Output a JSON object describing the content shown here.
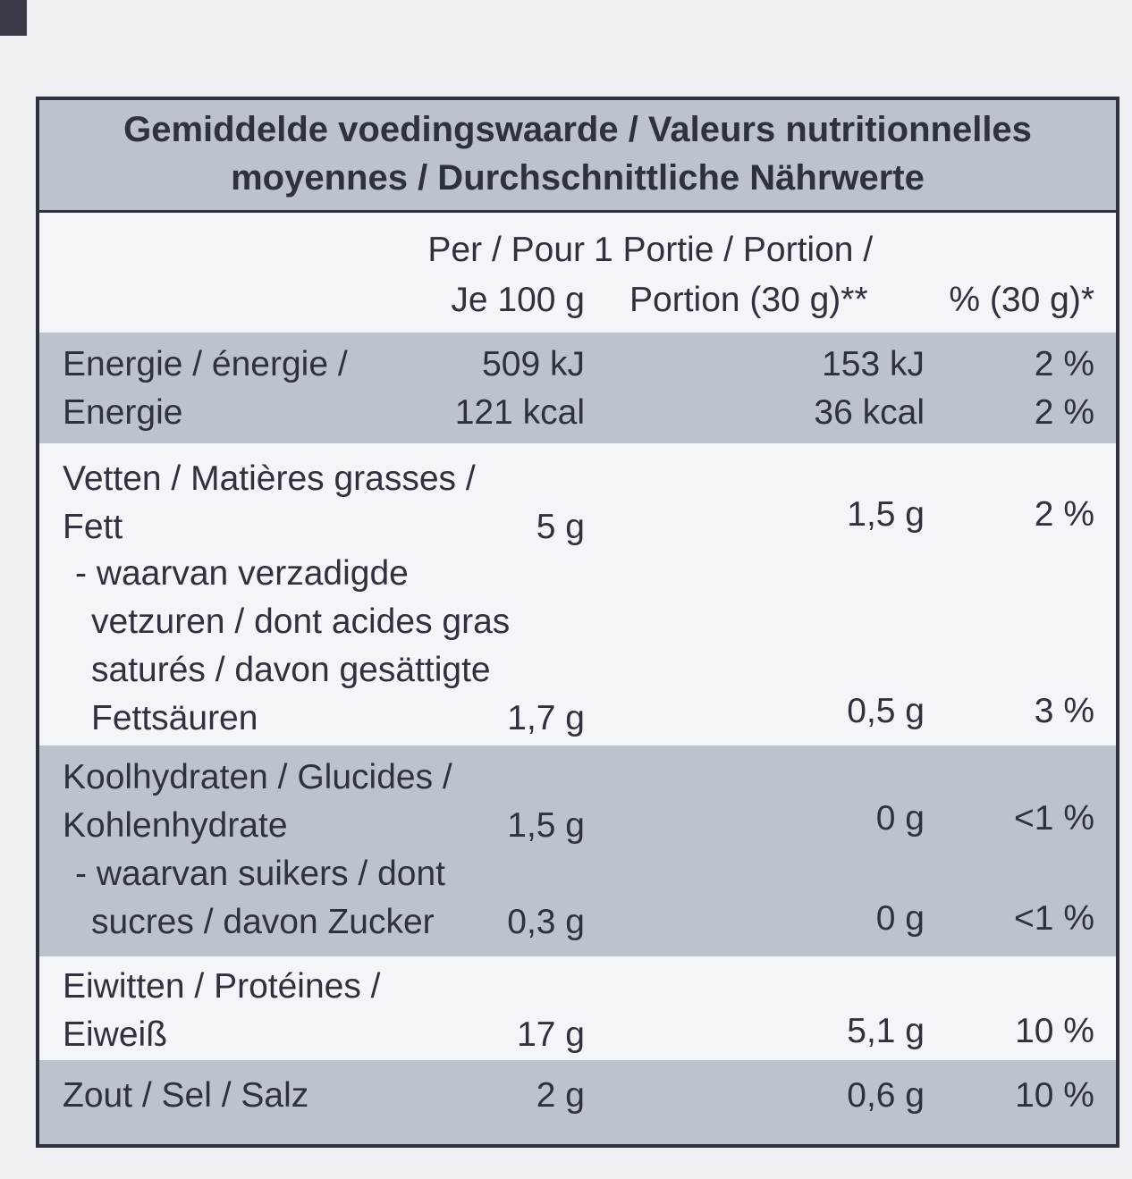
{
  "header": {
    "line1": "Gemiddelde voedingswaarde / Valeurs nutritionnelles",
    "line2": "moyennes / Durchschnittliche Nährwerte"
  },
  "columns": {
    "per100_line1": "Per / Pour",
    "per100_line2": "Je 100 g",
    "portion_line1": "1 Portie / Portion /",
    "portion_line2": "Portion (30 g)**",
    "pct": "% (30 g)*"
  },
  "rows": {
    "energy": {
      "name_line1": "Energie / énergie /",
      "name_line2": "Energie",
      "per100_kj": "509 kJ",
      "per100_kcal": "121 kcal",
      "portion_kj": "153 kJ",
      "portion_kcal": "36 kcal",
      "pct_kj": "2 %",
      "pct_kcal": "2 %"
    },
    "fat": {
      "name_line1": "Vetten / Matières grasses /",
      "name_line2": "Fett",
      "per100": "5 g",
      "portion": "1,5 g",
      "pct": "2 %"
    },
    "saturated": {
      "name_line1": "- waarvan verzadigde",
      "name_line2": "vetzuren / dont acides gras",
      "name_line3": "saturés / davon gesättigte",
      "name_line4": "Fettsäuren",
      "per100": "1,7 g",
      "portion": "0,5 g",
      "pct": "3 %"
    },
    "carbs": {
      "name_line1": "Koolhydraten / Glucides /",
      "name_line2": "Kohlenhydrate",
      "per100": "1,5 g",
      "portion": "0 g",
      "pct": "<1 %"
    },
    "sugars": {
      "name_line1": "- waarvan suikers / dont",
      "name_line2": "sucres / davon Zucker",
      "per100": "0,3 g",
      "portion": "0 g",
      "pct": "<1 %"
    },
    "protein": {
      "name_line1": "Eiwitten / Protéines /",
      "name_line2": "Eiweiß",
      "per100": "17 g",
      "portion": "5,1 g",
      "pct": "10 %"
    },
    "salt": {
      "name_line1": "Zout / Sel / Salz",
      "per100": "2 g",
      "portion": "0,6 g",
      "pct": "10 %"
    }
  }
}
